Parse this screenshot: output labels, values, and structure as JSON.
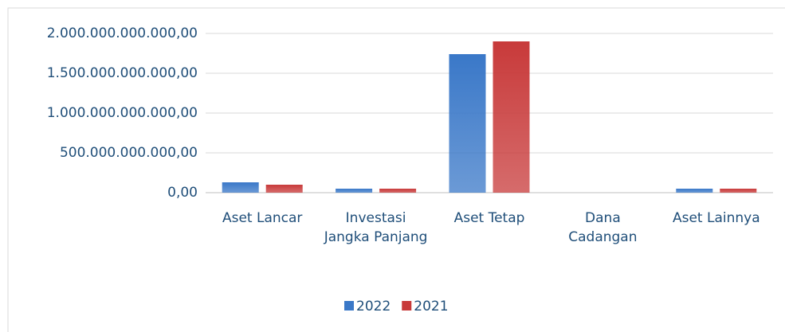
{
  "chart_data": {
    "type": "bar",
    "categories": [
      "Aset Lancar",
      "Investasi Jangka Panjang",
      "Aset Tetap",
      "Dana Cadangan",
      "Aset Lainnya"
    ],
    "series": [
      {
        "name": "2022",
        "color": "#3a78c8",
        "values": [
          130000000000,
          50000000000,
          1740000000000,
          0,
          50000000000
        ]
      },
      {
        "name": "2021",
        "color": "#c83a3a",
        "values": [
          100000000000,
          50000000000,
          1900000000000,
          0,
          50000000000
        ]
      }
    ],
    "ylim": [
      0,
      2000000000000
    ],
    "yticks": [
      {
        "value": 0,
        "label": "0,00"
      },
      {
        "value": 500000000000,
        "label": "500.000.000.000,00"
      },
      {
        "value": 1000000000000,
        "label": "1.000.000.000.000,00"
      },
      {
        "value": 1500000000000,
        "label": "1.500.000.000.000,00"
      },
      {
        "value": 2000000000000,
        "label": "2.000.000.000.000,00"
      }
    ],
    "grid": true,
    "legend": "bottom"
  }
}
